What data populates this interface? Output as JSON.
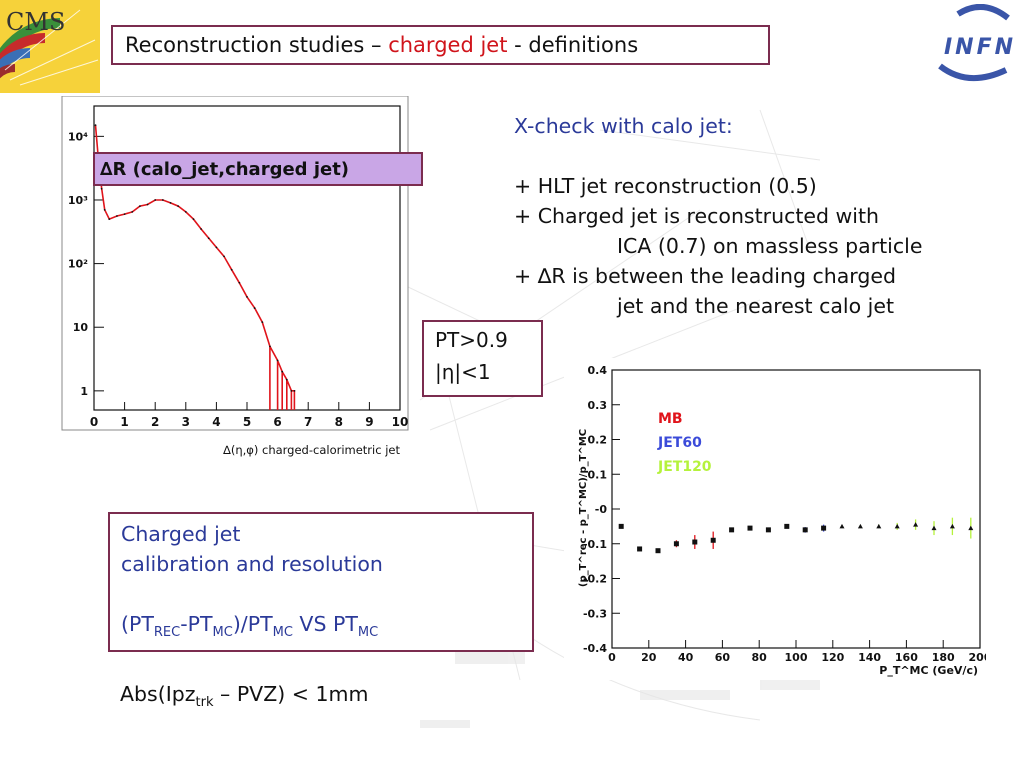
{
  "title": {
    "prefix": "Reconstruction studies – ",
    "highlight": "charged jet",
    "suffix": " - definitions"
  },
  "logos": {
    "left_label": "CMS",
    "right_label": "INFN"
  },
  "histogram": {
    "label": "∆R (calo_jet,charged jet)",
    "chart_data": {
      "type": "histogram",
      "xlabel": "∆(η,φ) charged-calorimetric jet",
      "ylabel": "",
      "xlim": [
        0,
        10
      ],
      "ylim_log": [
        0.5,
        30000
      ],
      "y_scale": "log",
      "x_ticks": [
        "0",
        "1",
        "2",
        "3",
        "4",
        "5",
        "6",
        "7",
        "8",
        "9",
        "10"
      ],
      "y_ticks": [
        "1",
        "10",
        "10²",
        "10³",
        "10⁴"
      ],
      "line_color": "#e0141b",
      "x": [
        0.05,
        0.15,
        0.25,
        0.35,
        0.5,
        0.75,
        1.0,
        1.25,
        1.5,
        1.75,
        2.0,
        2.25,
        2.5,
        2.75,
        3.0,
        3.25,
        3.5,
        3.75,
        4.0,
        4.25,
        4.5,
        4.75,
        5.0,
        5.25,
        5.5,
        5.75,
        6.0,
        6.15,
        6.3,
        6.45,
        6.55
      ],
      "y": [
        15000,
        4000,
        1500,
        700,
        500,
        560,
        600,
        650,
        800,
        850,
        1000,
        1000,
        900,
        800,
        650,
        500,
        350,
        250,
        180,
        130,
        80,
        50,
        30,
        20,
        12,
        5,
        3,
        2,
        1.5,
        1,
        1
      ]
    }
  },
  "xcheck": {
    "heading": "X-check with calo jet:",
    "lines": [
      "+ HLT jet reconstruction (0.5)",
      "+ Charged jet is reconstructed with",
      "ICA (0.7) on massless particle",
      "+ ∆R is between the leading charged",
      "jet and the nearest calo jet"
    ]
  },
  "cuts": {
    "line1": "PT>0.9",
    "line2": "|η|<1"
  },
  "calibration": {
    "line1": "Charged jet",
    "line2": "calibration and resolution",
    "formula_parts": [
      "(PT",
      "REC",
      "-PT",
      "MC",
      ")/PT",
      "MC",
      " VS PT",
      "MC"
    ]
  },
  "abs_cut": {
    "parts": [
      "Abs(Ipz",
      "trk",
      " – PVZ) < 1mm"
    ]
  },
  "resolution_plot": {
    "chart_data": {
      "type": "scatter",
      "xlabel": "P_T^MC (GeV/c)",
      "ylabel": "(p_T^rec - p_T^MC)/p_T^MC",
      "xlim": [
        0,
        200
      ],
      "ylim": [
        -0.4,
        0.4
      ],
      "x_ticks": [
        "0",
        "20",
        "40",
        "60",
        "80",
        "100",
        "120",
        "140",
        "160",
        "180",
        "200"
      ],
      "y_ticks": [
        "0.4",
        "0.3",
        "0.2",
        "0.1",
        "-0",
        "-0.1",
        "-0.2",
        "-0.3",
        "-0.4"
      ],
      "series": [
        {
          "name": "MB",
          "color": "#e0141b",
          "x": [
            5,
            15,
            25,
            35,
            45,
            55
          ],
          "y": [
            -0.05,
            -0.115,
            -0.12,
            -0.1,
            -0.095,
            -0.09
          ],
          "err": [
            0.002,
            0.003,
            0.005,
            0.01,
            0.02,
            0.025
          ]
        },
        {
          "name": "JET60",
          "color": "#3b4bd9",
          "x": [
            65,
            75,
            85,
            95,
            105,
            115
          ],
          "y": [
            -0.06,
            -0.055,
            -0.06,
            -0.05,
            -0.06,
            -0.055
          ],
          "err": [
            0.003,
            0.003,
            0.003,
            0.004,
            0.008,
            0.01
          ]
        },
        {
          "name": "JET120",
          "color": "#b5f23c",
          "x": [
            125,
            135,
            145,
            155,
            165,
            175,
            185,
            195
          ],
          "y": [
            -0.05,
            -0.05,
            -0.05,
            -0.05,
            -0.045,
            -0.055,
            -0.05,
            -0.055
          ],
          "err": [
            0.003,
            0.004,
            0.005,
            0.01,
            0.015,
            0.02,
            0.025,
            0.03
          ]
        }
      ]
    }
  }
}
